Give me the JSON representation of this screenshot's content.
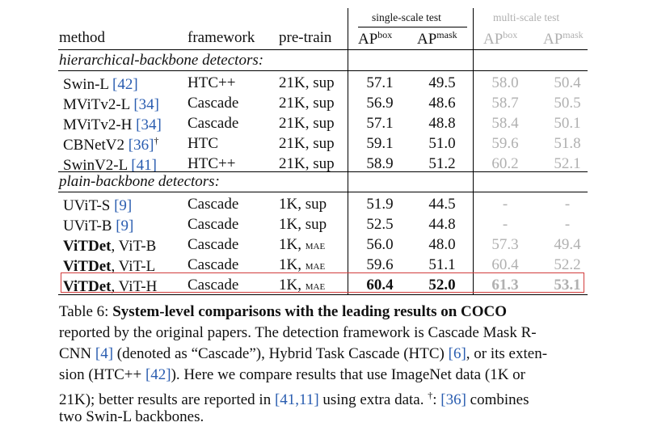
{
  "header": {
    "single_scale": "single-scale test",
    "multi_scale": "multi-scale test",
    "cols": {
      "method": "method",
      "framework": "framework",
      "pretrain": "pre-train",
      "ap": "AP",
      "box": "box",
      "mask": "mask"
    }
  },
  "groups": [
    {
      "title": "hierarchical-backbone detectors:",
      "rows": [
        {
          "m_bold": "",
          "m_pre": "Swin-L ",
          "m_ref": "[42]",
          "m_post": "",
          "m_dag": "",
          "fw": "HTC++",
          "pt": "21K, sup",
          "pt_sc": "",
          "ss_box": "57.1",
          "ss_mask": "49.5",
          "ms_box": "58.0",
          "ms_mask": "50.4"
        },
        {
          "m_bold": "",
          "m_pre": "MViTv2-L ",
          "m_ref": "[34]",
          "m_post": "",
          "m_dag": "",
          "fw": "Cascade",
          "pt": "21K, sup",
          "pt_sc": "",
          "ss_box": "56.9",
          "ss_mask": "48.6",
          "ms_box": "58.7",
          "ms_mask": "50.5"
        },
        {
          "m_bold": "",
          "m_pre": "MViTv2-H ",
          "m_ref": "[34]",
          "m_post": "",
          "m_dag": "",
          "fw": "Cascade",
          "pt": "21K, sup",
          "pt_sc": "",
          "ss_box": "57.1",
          "ss_mask": "48.8",
          "ms_box": "58.4",
          "ms_mask": "50.1"
        },
        {
          "m_bold": "",
          "m_pre": "CBNetV2 ",
          "m_ref": "[36]",
          "m_post": "",
          "m_dag": "†",
          "fw": "HTC",
          "pt": "21K, sup",
          "pt_sc": "",
          "ss_box": "59.1",
          "ss_mask": "51.0",
          "ms_box": "59.6",
          "ms_mask": "51.8"
        },
        {
          "m_bold": "",
          "m_pre": "SwinV2-L ",
          "m_ref": "[41]",
          "m_post": "",
          "m_dag": "",
          "fw": "HTC++",
          "pt": "21K, sup",
          "pt_sc": "",
          "ss_box": "58.9",
          "ss_mask": "51.2",
          "ms_box": "60.2",
          "ms_mask": "52.1"
        }
      ]
    },
    {
      "title": "plain-backbone detectors:",
      "rows": [
        {
          "m_bold": "",
          "m_pre": "UViT-S ",
          "m_ref": "[9]",
          "m_post": "",
          "m_dag": "",
          "fw": "Cascade",
          "pt": "1K, sup",
          "pt_sc": "",
          "ss_box": "51.9",
          "ss_mask": "44.5",
          "ms_box": "-",
          "ms_mask": "-"
        },
        {
          "m_bold": "",
          "m_pre": "UViT-B ",
          "m_ref": "[9]",
          "m_post": "",
          "m_dag": "",
          "fw": "Cascade",
          "pt": "1K, sup",
          "pt_sc": "",
          "ss_box": "52.5",
          "ss_mask": "44.8",
          "ms_box": "-",
          "ms_mask": "-"
        },
        {
          "m_bold": "ViTDet",
          "m_pre": "",
          "m_ref": "",
          "m_post": ", ViT-B",
          "m_dag": "",
          "fw": "Cascade",
          "pt": "1K, ",
          "pt_sc": "mae",
          "ss_box": "56.0",
          "ss_mask": "48.0",
          "ms_box": "57.3",
          "ms_mask": "49.4"
        },
        {
          "m_bold": "ViTDet",
          "m_pre": "",
          "m_ref": "",
          "m_post": ", ViT-L",
          "m_dag": "",
          "fw": "Cascade",
          "pt": "1K, ",
          "pt_sc": "mae",
          "ss_box": "59.6",
          "ss_mask": "51.1",
          "ms_box": "60.4",
          "ms_mask": "52.2"
        },
        {
          "m_bold": "ViTDet",
          "m_pre": "",
          "m_ref": "",
          "m_post": ", ViT-H",
          "m_dag": "",
          "fw": "Cascade",
          "pt": "1K, ",
          "pt_sc": "mae",
          "ss_box": "60.4",
          "ss_mask": "52.0",
          "ms_box": "61.3",
          "ms_mask": "53.1",
          "bold_values": true
        }
      ]
    }
  ],
  "caption": {
    "label": "Table 6: ",
    "title": "System-level comparisons with the leading results on COCO",
    "l2": "reported by the original papers. The detection framework is Cascade Mask R-",
    "l3a": "CNN ",
    "l3r1": "[4]",
    "l3b": " (denoted as “Cascade”), Hybrid Task Cascade (HTC) ",
    "l3r2": "[6]",
    "l3c": ", or its exten-",
    "l4a": "sion (HTC++ ",
    "l4r1": "[42]",
    "l4b": "). Here we compare results that use ImageNet data (1K or",
    "l5a": "21K); better results are reported in ",
    "l5r1": "[41,11]",
    "l5b": " using extra data. ",
    "l5dag": "†",
    "l5c": ": ",
    "l5r2": "[36]",
    "l5d": " combines",
    "l6": "two Swin-L backbones."
  }
}
